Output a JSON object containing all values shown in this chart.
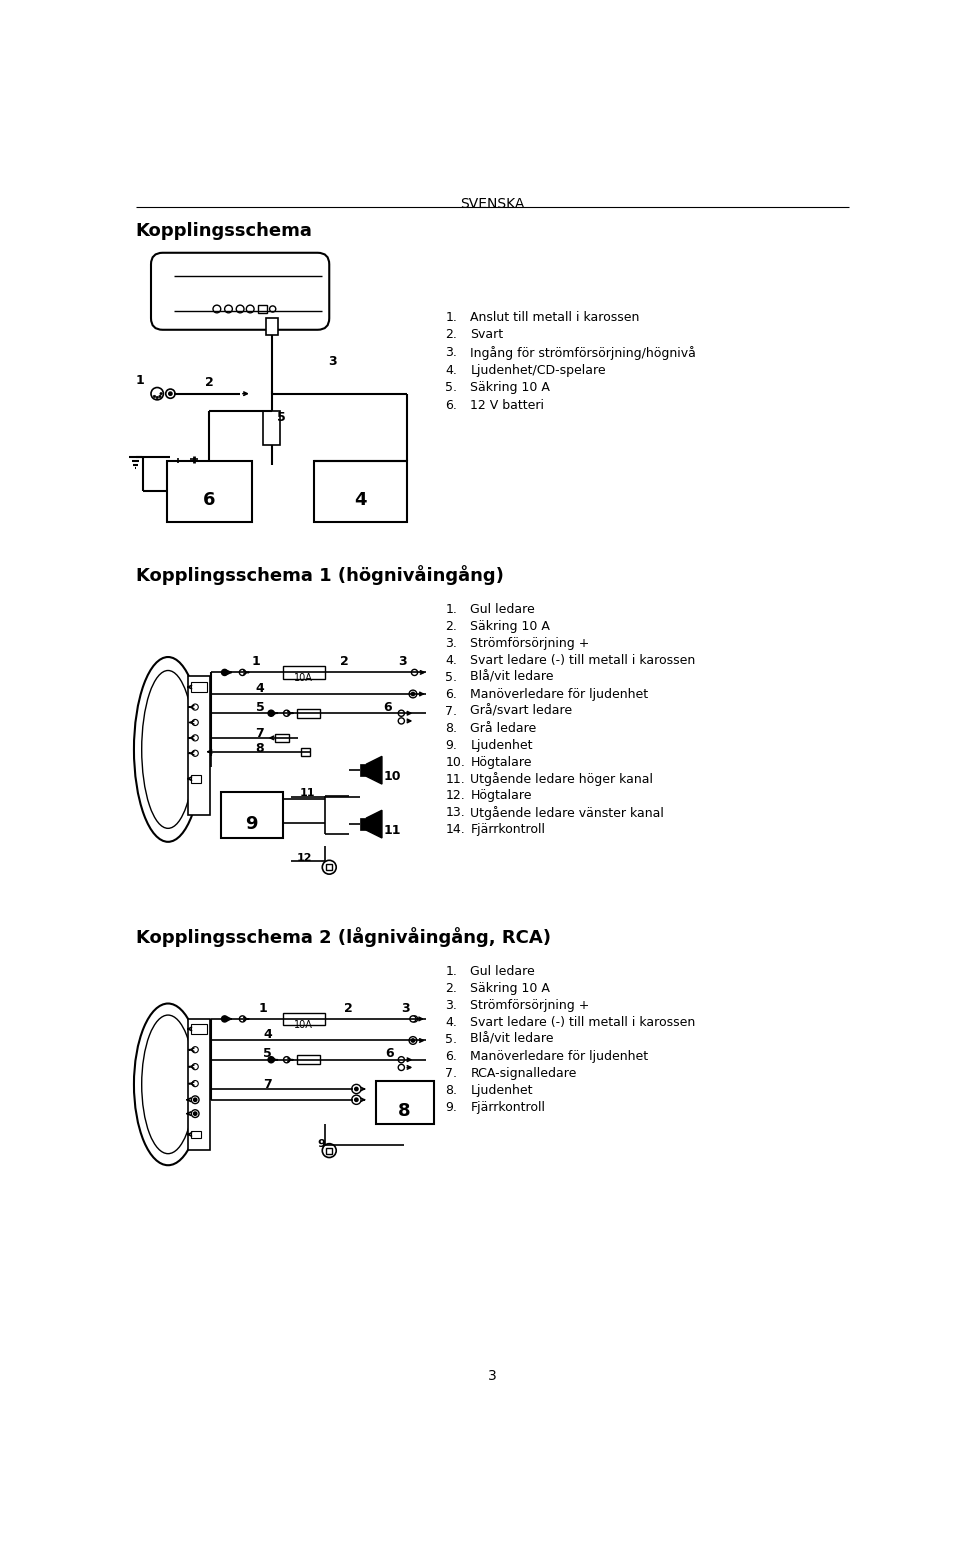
{
  "page_title": "SVENSKA",
  "page_number": "3",
  "section1_title": "Kopplingsschema",
  "section2_title": "Kopplingsschema 1 (högnivåingång)",
  "section3_title": "Kopplingsschema 2 (lågnivåingång, RCA)",
  "list1": [
    "Anslut till metall i karossen",
    "Svart",
    "Ingång för strömförsörjning/högnivå",
    "Ljudenhet/CD-spelare",
    "Säkring 10 A",
    "12 V batteri"
  ],
  "list2": [
    "Gul ledare",
    "Säkring 10 A",
    "Strömförsörjning +",
    "Svart ledare (-) till metall i karossen",
    "Blå/vit ledare",
    "Manöverledare för ljudenhet",
    "Grå/svart ledare",
    "Grå ledare",
    "Ljudenhet",
    "Högtalare",
    "Utgående ledare höger kanal",
    "Högtalare",
    "Utgående ledare vänster kanal",
    "Fjärrkontroll"
  ],
  "list3": [
    "Gul ledare",
    "Säkring 10 A",
    "Strömförsörjning +",
    "Svart ledare (-) till metall i karossen",
    "Blå/vit ledare",
    "Manöverledare för ljudenhet",
    "RCA-signalledare",
    "Ljudenhet",
    "Fjärrkontroll"
  ],
  "bg_color": "#ffffff",
  "text_color": "#000000",
  "lw": 1.2,
  "list_fontsize": 9.0,
  "label_fontsize": 8.5
}
